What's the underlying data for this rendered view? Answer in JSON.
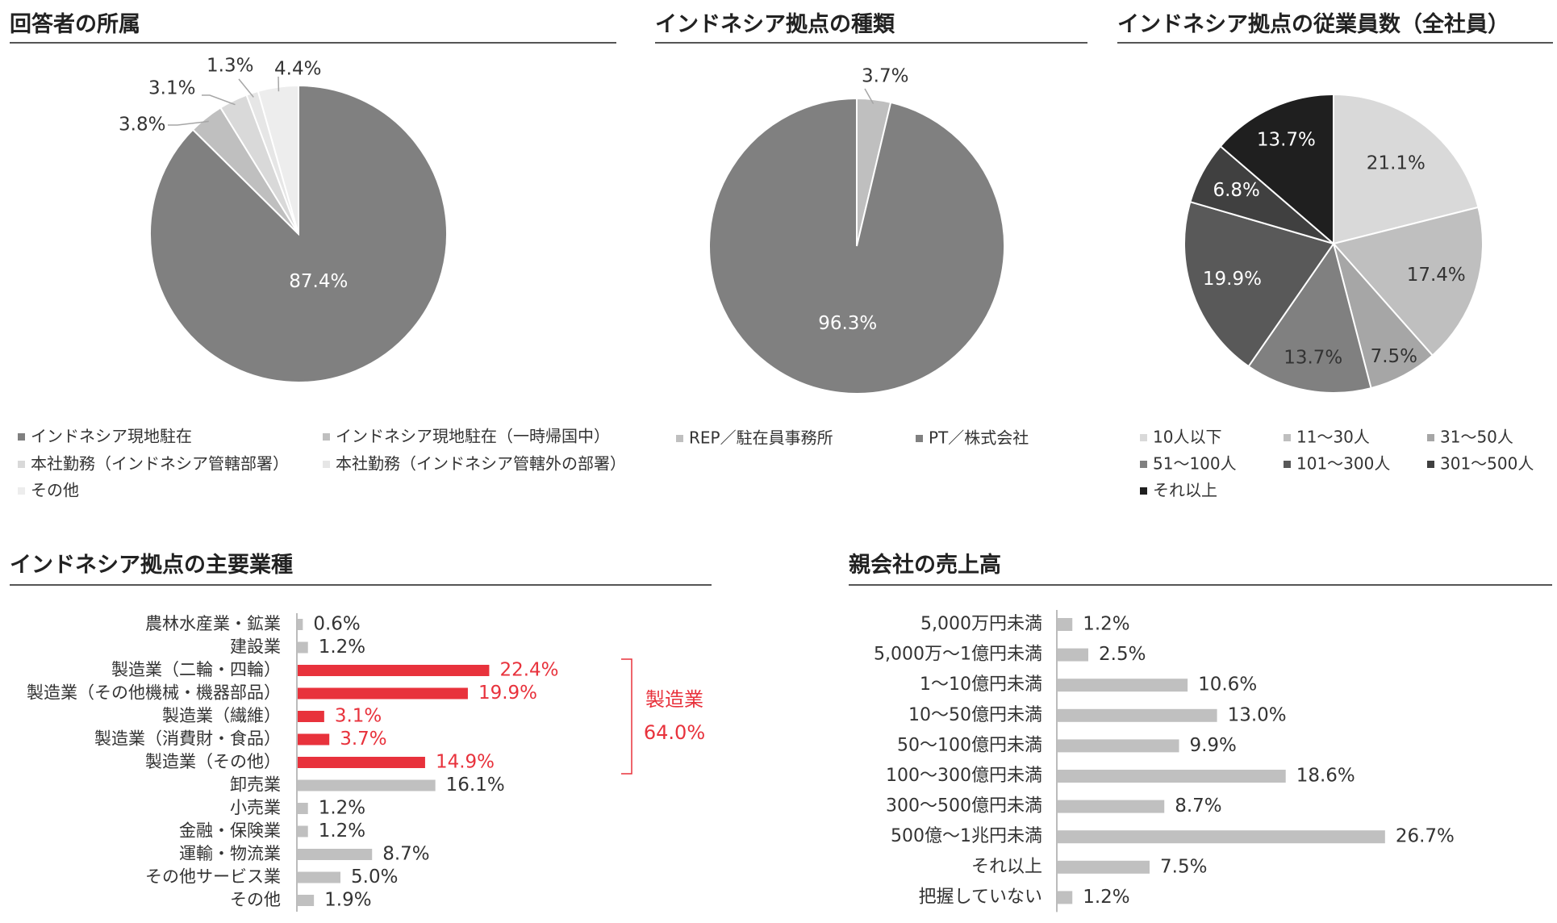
{
  "colors": {
    "title": "#222222",
    "rule": "#555555",
    "bar_default": "#c0c0c0",
    "bar_highlight": "#e8323c",
    "highlight_text": "#e8323c",
    "label_text": "#333333"
  },
  "chart_data": [
    {
      "id": "affiliation",
      "type": "pie",
      "title": "回答者の所属",
      "labels": [
        "インドネシア現地駐在",
        "インドネシア現地駐在（一時帰国中）",
        "本社勤務（インドネシア管轄部署）",
        "本社勤務（インドネシア管轄外の部署）",
        "その他"
      ],
      "values": [
        87.4,
        3.8,
        3.1,
        1.3,
        4.4
      ],
      "value_labels": [
        "87.4%",
        "3.8%",
        "3.1%",
        "1.3%",
        "4.4%"
      ],
      "colors": [
        "#808080",
        "#bfbfbf",
        "#d9d9d9",
        "#e6e6e6",
        "#ededed"
      ],
      "legend_position": "bottom"
    },
    {
      "id": "base_type",
      "type": "pie",
      "title": "インドネシア拠点の種類",
      "labels": [
        "REP／駐在員事務所",
        "PT／株式会社"
      ],
      "values": [
        3.7,
        96.3
      ],
      "value_labels": [
        "3.7%",
        "96.3%"
      ],
      "colors": [
        "#bfbfbf",
        "#808080"
      ],
      "legend_position": "bottom"
    },
    {
      "id": "employees",
      "type": "pie",
      "title": "インドネシア拠点の従業員数（全社員）",
      "labels": [
        "10人以下",
        "11～30人",
        "31～50人",
        "51～100人",
        "101～300人",
        "301～500人",
        "それ以上"
      ],
      "values": [
        21.1,
        17.4,
        7.5,
        13.7,
        19.9,
        6.8,
        13.7
      ],
      "value_labels": [
        "21.1%",
        "17.4%",
        "7.5%",
        "13.7%",
        "19.9%",
        "6.8%",
        "13.7%"
      ],
      "colors": [
        "#d9d9d9",
        "#bfbfbf",
        "#a6a6a6",
        "#808080",
        "#595959",
        "#404040",
        "#1f1f1f"
      ],
      "legend_position": "bottom"
    },
    {
      "id": "industry",
      "type": "bar",
      "orientation": "horizontal",
      "title": "インドネシア拠点の主要業種",
      "categories": [
        "農林水産業・鉱業",
        "建設業",
        "製造業（二輪・四輪）",
        "製造業（その他機械・機器部品）",
        "製造業（繊維）",
        "製造業（消費財・食品）",
        "製造業（その他）",
        "卸売業",
        "小売業",
        "金融・保険業",
        "運輸・物流業",
        "その他サービス業",
        "その他"
      ],
      "values": [
        0.6,
        1.2,
        22.4,
        19.9,
        3.1,
        3.7,
        14.9,
        16.1,
        1.2,
        1.2,
        8.7,
        5.0,
        1.9
      ],
      "value_labels": [
        "0.6%",
        "1.2%",
        "22.4%",
        "19.9%",
        "3.1%",
        "3.7%",
        "14.9%",
        "16.1%",
        "1.2%",
        "1.2%",
        "8.7%",
        "5.0%",
        "1.9%"
      ],
      "highlight": [
        false,
        false,
        true,
        true,
        true,
        true,
        true,
        false,
        false,
        false,
        false,
        false,
        false
      ],
      "group_annotation": {
        "label": "製造業",
        "value": "64.0%"
      }
    },
    {
      "id": "parent_sales",
      "type": "bar",
      "orientation": "horizontal",
      "title": "親会社の売上高",
      "categories": [
        "5,000万円未満",
        "5,000万～1億円未満",
        "1～10億円未満",
        "10～50億円未満",
        "50～100億円未満",
        "100～300億円未満",
        "300～500億円未満",
        "500億～1兆円未満",
        "それ以上",
        "把握していない"
      ],
      "values": [
        1.2,
        2.5,
        10.6,
        13.0,
        9.9,
        18.6,
        8.7,
        26.7,
        7.5,
        1.2
      ],
      "value_labels": [
        "1.2%",
        "2.5%",
        "10.6%",
        "13.0%",
        "9.9%",
        "18.6%",
        "8.7%",
        "26.7%",
        "7.5%",
        "1.2%"
      ]
    }
  ]
}
